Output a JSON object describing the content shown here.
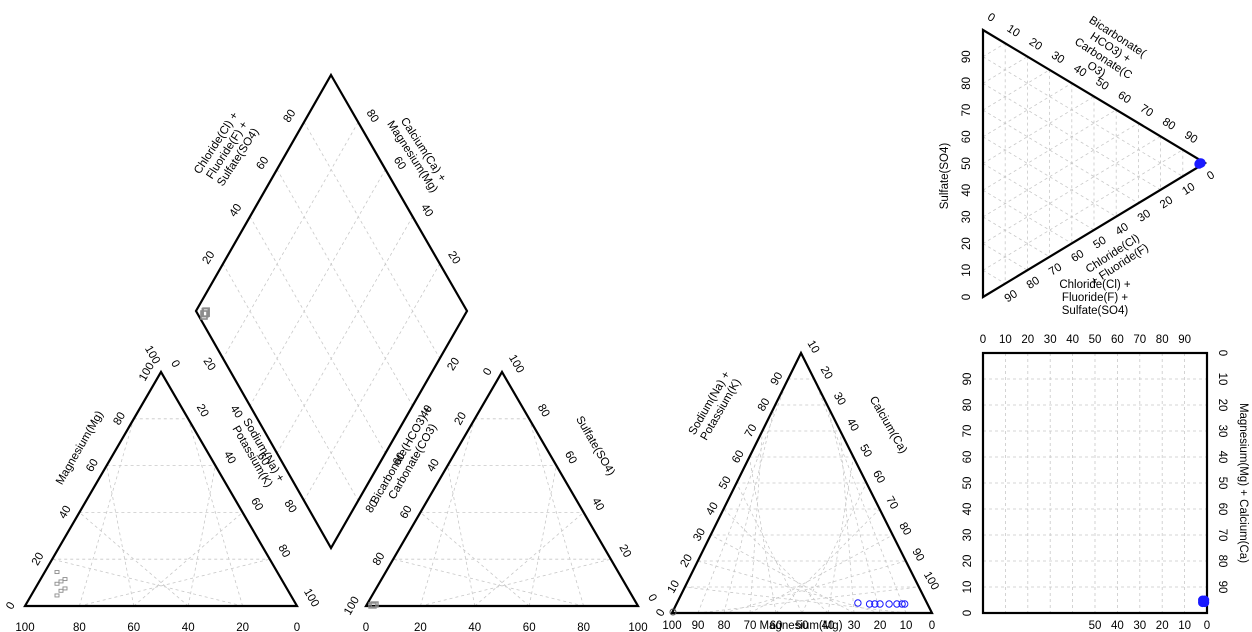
{
  "chart_data": [
    {
      "panel": "piper-diamond",
      "type": "scatter",
      "labels": {
        "left": "Chloride(Cl) + Fluoride(F) + Sulfate(SO4)",
        "right": "Calcium(Ca) + Magnesium(Mg)"
      },
      "ticks": {
        "upper_left": [
          "20",
          "40",
          "60",
          "80"
        ],
        "upper_right": [
          "80",
          "60",
          "40",
          "20"
        ],
        "lower_left": [
          "20",
          "40",
          "60",
          "80"
        ],
        "lower_right": [
          "20",
          "40",
          "60",
          "80"
        ]
      },
      "points": [
        {
          "so4_cl": 0,
          "ca_mg": 100
        },
        {
          "so4_cl": 1,
          "ca_mg": 99
        },
        {
          "so4_cl": 1,
          "ca_mg": 100
        }
      ],
      "point_color": "#8c8c8c"
    },
    {
      "panel": "piper-cation-triangle",
      "type": "scatter",
      "labels": {
        "left": "Magnesium(Mg)",
        "right": "Sodium(Na) + Potassium(K)"
      },
      "ticks": {
        "bottom": [
          "100",
          "80",
          "60",
          "40",
          "20",
          "0"
        ],
        "left": [
          "0",
          "20",
          "40",
          "60",
          "80",
          "100"
        ],
        "right": [
          "100",
          "0",
          "20",
          "40",
          "60",
          "80",
          "100"
        ]
      },
      "points": [
        {
          "mg": 6,
          "nak": 0
        },
        {
          "mg": 8,
          "nak": 0
        },
        {
          "mg": 9,
          "nak": 0
        },
        {
          "mg": 11,
          "nak": 0
        },
        {
          "mg": 12,
          "nak": 0
        },
        {
          "mg": 13,
          "nak": 0
        },
        {
          "mg": 16,
          "nak": 0
        }
      ],
      "point_color": "#8c8c8c"
    },
    {
      "panel": "piper-anion-triangle",
      "type": "scatter",
      "labels": {
        "left": "Bicarbonate(HCO3) + Carbonate(CO3)",
        "right": "Sulfate(SO4)"
      },
      "ticks": {
        "bottom": [
          "0",
          "20",
          "40",
          "60",
          "80",
          "100"
        ],
        "left": [
          "100",
          "80",
          "60",
          "40",
          "20",
          "0"
        ],
        "right": [
          "100",
          "80",
          "60",
          "40",
          "20",
          "0"
        ]
      },
      "points": [
        {
          "so4": 0,
          "hco3": 100
        },
        {
          "so4": 1,
          "hco3": 99
        }
      ],
      "point_color": "#8c8c8c"
    },
    {
      "panel": "cation-ternary",
      "type": "scatter",
      "labels": {
        "left": "Sodium(Na) + Potassium(K)",
        "right": "Calcium(Ca)",
        "bottom": "Magnesium(Mg)"
      },
      "ticks": {
        "bottom": [
          "100",
          "90",
          "80",
          "70",
          "60",
          "50",
          "40",
          "30",
          "20",
          "10",
          "0"
        ],
        "left": [
          "0",
          "10",
          "20",
          "30",
          "40",
          "50",
          "60",
          "70",
          "80",
          "90"
        ],
        "right": [
          "10",
          "20",
          "30",
          "40",
          "50",
          "60",
          "70",
          "80",
          "90",
          "100"
        ]
      },
      "points": [
        {
          "mg": 28,
          "ca": 71
        },
        {
          "mg": 24,
          "ca": 76
        },
        {
          "mg": 22,
          "ca": 78
        },
        {
          "mg": 20,
          "ca": 80
        },
        {
          "mg": 16,
          "ca": 83
        },
        {
          "mg": 13,
          "ca": 86
        },
        {
          "mg": 11,
          "ca": 88
        },
        {
          "mg": 10,
          "ca": 89
        }
      ],
      "point_color": "#1a1aff"
    },
    {
      "panel": "anion-ternary",
      "type": "scatter",
      "labels": {
        "left": "Sulfate(SO4)",
        "top": "Bicarbonate( HCO3) + Carbonate(C O3)",
        "bottom": "Chloride(Cl) + Fluoride(F)"
      },
      "ticks": {
        "left": [
          "0",
          "10",
          "20",
          "30",
          "40",
          "50",
          "60",
          "70",
          "80",
          "90"
        ],
        "top": [
          "0",
          "10",
          "20",
          "30",
          "40",
          "50",
          "60",
          "70",
          "80",
          "90"
        ],
        "bottom": [
          "0",
          "10",
          "20",
          "30",
          "40",
          "50",
          "60",
          "70",
          "80",
          "90"
        ]
      },
      "points": [
        {
          "hco3": 99,
          "so4": 1
        },
        {
          "hco3": 100,
          "so4": 0
        },
        {
          "hco3": 98,
          "so4": 1
        }
      ],
      "point_color": "#1a1aff"
    },
    {
      "panel": "square-plot",
      "type": "scatter",
      "labels": {
        "top": "Chloride(Cl) + Fluoride(F) + Sulfate(SO4)",
        "right": "Magnesium(Mg) + Calcium(Ca)"
      },
      "ticks": {
        "top": [
          "0",
          "10",
          "20",
          "30",
          "40",
          "50",
          "60",
          "70",
          "80",
          "90"
        ],
        "left": [
          "0",
          "10",
          "20",
          "30",
          "40",
          "50",
          "60",
          "70",
          "80",
          "90"
        ],
        "bottom": [
          "50",
          "40",
          "30",
          "20",
          "10",
          "0"
        ],
        "right": [
          "0",
          "10",
          "20",
          "30",
          "40",
          "50",
          "60",
          "70",
          "80",
          "90"
        ]
      },
      "points": [
        {
          "x": 99,
          "y": 4
        },
        {
          "x": 98,
          "y": 4
        },
        {
          "x": 99,
          "y": 5
        },
        {
          "x": 98,
          "y": 5
        }
      ],
      "point_color": "#1a1aff"
    }
  ]
}
